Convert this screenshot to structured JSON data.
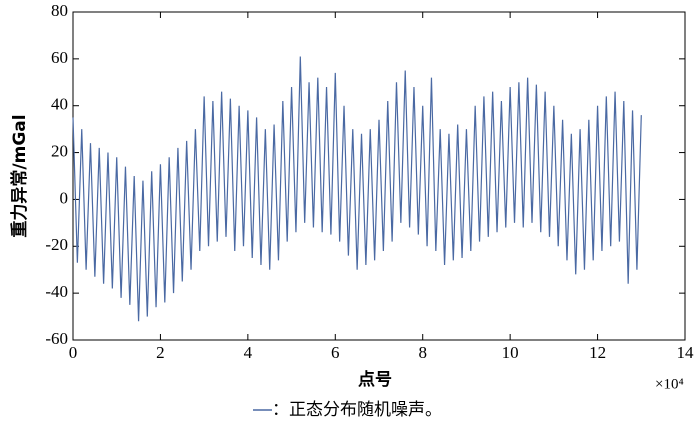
{
  "chart_data": {
    "type": "line",
    "xlabel": "点号",
    "ylabel": "重力异常/mGal",
    "x_multiplier": "×10⁴",
    "x": [
      0,
      0.1,
      0.2,
      0.3,
      0.4,
      0.5,
      0.6,
      0.7,
      0.8,
      0.9,
      1,
      1.1,
      1.2,
      1.3,
      1.4,
      1.5,
      1.6,
      1.7,
      1.8,
      1.9,
      2,
      2.1,
      2.2,
      2.3,
      2.4,
      2.5,
      2.6,
      2.7,
      2.8,
      2.9,
      3,
      3.1,
      3.2,
      3.3,
      3.4,
      3.5,
      3.6,
      3.7,
      3.8,
      3.9,
      4,
      4.1,
      4.2,
      4.3,
      4.4,
      4.5,
      4.6,
      4.7,
      4.8,
      4.9,
      5,
      5.1,
      5.2,
      5.3,
      5.4,
      5.5,
      5.6,
      5.7,
      5.8,
      5.9,
      6,
      6.1,
      6.2,
      6.3,
      6.4,
      6.5,
      6.6,
      6.7,
      6.8,
      6.9,
      7,
      7.1,
      7.2,
      7.3,
      7.4,
      7.5,
      7.6,
      7.7,
      7.8,
      7.9,
      8,
      8.1,
      8.2,
      8.3,
      8.4,
      8.5,
      8.6,
      8.7,
      8.8,
      8.9,
      9,
      9.1,
      9.2,
      9.3,
      9.4,
      9.5,
      9.6,
      9.7,
      9.8,
      9.9,
      10,
      10.1,
      10.2,
      10.3,
      10.4,
      10.5,
      10.6,
      10.7,
      10.8,
      10.9,
      11,
      11.1,
      11.2,
      11.3,
      11.4,
      11.5,
      11.6,
      11.7,
      11.8,
      11.9,
      12,
      12.1,
      12.2,
      12.3,
      12.4,
      12.5,
      12.6,
      12.7,
      12.8,
      12.9,
      13
    ],
    "series": [
      {
        "name": "：正态分布随机噪声。",
        "color": "#4a69a3",
        "values": [
          35,
          -27,
          30,
          -30,
          24,
          -33,
          22,
          -36,
          20,
          -38,
          18,
          -42,
          14,
          -45,
          10,
          -52,
          8,
          -50,
          12,
          -46,
          15,
          -44,
          18,
          -40,
          22,
          -35,
          25,
          -30,
          30,
          -22,
          44,
          -20,
          42,
          -18,
          46,
          -16,
          43,
          -22,
          40,
          -20,
          38,
          -25,
          35,
          -28,
          30,
          -30,
          32,
          -26,
          42,
          -18,
          48,
          -14,
          61,
          -10,
          50,
          -12,
          52,
          -14,
          48,
          -15,
          54,
          -18,
          40,
          -24,
          30,
          -30,
          28,
          -28,
          30,
          -26,
          34,
          -22,
          42,
          -18,
          50,
          -10,
          55,
          -12,
          48,
          -15,
          40,
          -20,
          52,
          -22,
          30,
          -28,
          28,
          -26,
          32,
          -25,
          30,
          -22,
          40,
          -18,
          44,
          -16,
          46,
          -14,
          42,
          -12,
          48,
          -10,
          50,
          -12,
          52,
          -10,
          49,
          -14,
          46,
          -16,
          40,
          -20,
          34,
          -26,
          28,
          -32,
          30,
          -30,
          34,
          -26,
          40,
          -22,
          44,
          -20,
          46,
          -18,
          42,
          -36,
          38,
          -30,
          36
        ]
      }
    ],
    "xlim": [
      0,
      14
    ],
    "xticks": [
      0,
      2,
      4,
      6,
      8,
      10,
      12,
      14
    ],
    "ylim": [
      -60,
      80
    ],
    "yticks": [
      -60,
      -40,
      -20,
      0,
      20,
      40,
      60,
      80
    ]
  }
}
